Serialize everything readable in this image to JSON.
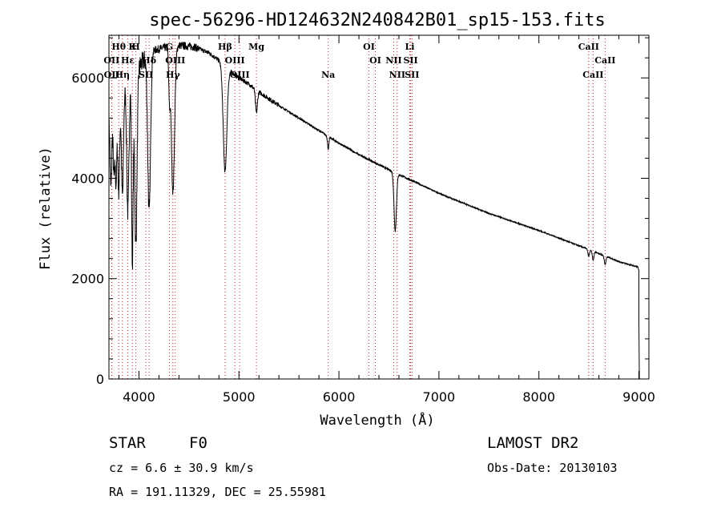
{
  "chart_data": {
    "type": "line",
    "title": "spec-56296-HD124632N240842B01_sp15-153.fits",
    "xlabel": "Wavelength (Å)",
    "ylabel": "Flux (relative)",
    "xlim": [
      3700,
      9100
    ],
    "ylim": [
      0,
      6850
    ],
    "xticks": [
      "4000",
      "5000",
      "6000",
      "7000",
      "8000",
      "9000"
    ],
    "yticks": [
      "0",
      "2000",
      "4000",
      "6000"
    ],
    "line_markers": [
      {
        "name": "Hθ",
        "x": 3798,
        "row": 1
      },
      {
        "name": "K",
        "x": 3934,
        "row": 1
      },
      {
        "name": "H",
        "x": 3969,
        "row": 1
      },
      {
        "name": "G",
        "x": 4305,
        "row": 1
      },
      {
        "name": "Hβ",
        "x": 4861,
        "row": 1
      },
      {
        "name": "Mg",
        "x": 5175,
        "row": 1
      },
      {
        "name": "OI",
        "x": 6300,
        "row": 1
      },
      {
        "name": "Li",
        "x": 6708,
        "row": 1
      },
      {
        "name": "CaII",
        "x": 8498,
        "row": 1
      },
      {
        "name": "OII",
        "x": 3727,
        "row": 2
      },
      {
        "name": "Hε",
        "x": 3889,
        "row": 2
      },
      {
        "name": "Hδ",
        "x": 4102,
        "row": 2
      },
      {
        "name": "OIII",
        "x": 4363,
        "row": 2
      },
      {
        "name": "OIII",
        "x": 4959,
        "row": 2
      },
      {
        "name": "OI",
        "x": 6364,
        "row": 2
      },
      {
        "name": "NII",
        "x": 6548,
        "row": 2
      },
      {
        "name": "SII",
        "x": 6717,
        "row": 2
      },
      {
        "name": "CaII",
        "x": 8662,
        "row": 2
      },
      {
        "name": "OII",
        "x": 3729,
        "row": 3
      },
      {
        "name": "Hη",
        "x": 3835,
        "row": 3
      },
      {
        "name": "SII",
        "x": 4070,
        "row": 3
      },
      {
        "name": "Hγ",
        "x": 4340,
        "row": 3
      },
      {
        "name": "OIII",
        "x": 5007,
        "row": 3
      },
      {
        "name": "Na",
        "x": 5893,
        "row": 3
      },
      {
        "name": "NII",
        "x": 6583,
        "row": 3
      },
      {
        "name": "SII",
        "x": 6731,
        "row": 3
      },
      {
        "name": "CaII",
        "x": 8542,
        "row": 3
      }
    ],
    "spectrum": {
      "continuum": [
        [
          3700,
          5100
        ],
        [
          3760,
          5400
        ],
        [
          3850,
          5800
        ],
        [
          3950,
          6100
        ],
        [
          4050,
          6350
        ],
        [
          4150,
          6550
        ],
        [
          4250,
          6600
        ],
        [
          4400,
          6650
        ],
        [
          4550,
          6620
        ],
        [
          4700,
          6500
        ],
        [
          4800,
          6350
        ],
        [
          4900,
          6150
        ],
        [
          5000,
          6000
        ],
        [
          5100,
          5880
        ],
        [
          5200,
          5720
        ],
        [
          5400,
          5450
        ],
        [
          5600,
          5200
        ],
        [
          5800,
          4950
        ],
        [
          6000,
          4700
        ],
        [
          6200,
          4470
        ],
        [
          6400,
          4270
        ],
        [
          6560,
          4110
        ],
        [
          6700,
          3980
        ],
        [
          7000,
          3700
        ],
        [
          7500,
          3300
        ],
        [
          8000,
          2960
        ],
        [
          8500,
          2580
        ],
        [
          8800,
          2340
        ],
        [
          8990,
          2230
        ],
        [
          9000,
          2150
        ]
      ],
      "absorption": [
        {
          "center": 3720,
          "depth": 1400,
          "width": 8
        },
        {
          "center": 3750,
          "depth": 1300,
          "width": 8
        },
        {
          "center": 3771,
          "depth": 1500,
          "width": 8
        },
        {
          "center": 3798,
          "depth": 1800,
          "width": 9
        },
        {
          "center": 3835,
          "depth": 2100,
          "width": 10
        },
        {
          "center": 3889,
          "depth": 2600,
          "width": 11
        },
        {
          "center": 3934,
          "depth": 3700,
          "width": 8
        },
        {
          "center": 3969,
          "depth": 3500,
          "width": 12
        },
        {
          "center": 4102,
          "depth": 3100,
          "width": 14
        },
        {
          "center": 4305,
          "depth": 900,
          "width": 8
        },
        {
          "center": 4340,
          "depth": 2900,
          "width": 16
        },
        {
          "center": 4861,
          "depth": 2100,
          "width": 18
        },
        {
          "center": 5175,
          "depth": 450,
          "width": 10
        },
        {
          "center": 5893,
          "depth": 250,
          "width": 7
        },
        {
          "center": 6563,
          "depth": 1150,
          "width": 12
        },
        {
          "center": 8498,
          "depth": 130,
          "width": 8
        },
        {
          "center": 8542,
          "depth": 180,
          "width": 8
        },
        {
          "center": 8662,
          "depth": 170,
          "width": 8
        }
      ],
      "cutoff": [
        [
          9000,
          1150
        ],
        [
          9005,
          0
        ]
      ]
    }
  },
  "info": {
    "object_class": "STAR",
    "subclass": "F0",
    "survey": "LAMOST DR2",
    "redshift": "cz =  6.6 ± 30.9 km/s",
    "obs_date": "Obs-Date: 20130103",
    "coords": "RA = 191.11329, DEC =  25.55981"
  }
}
